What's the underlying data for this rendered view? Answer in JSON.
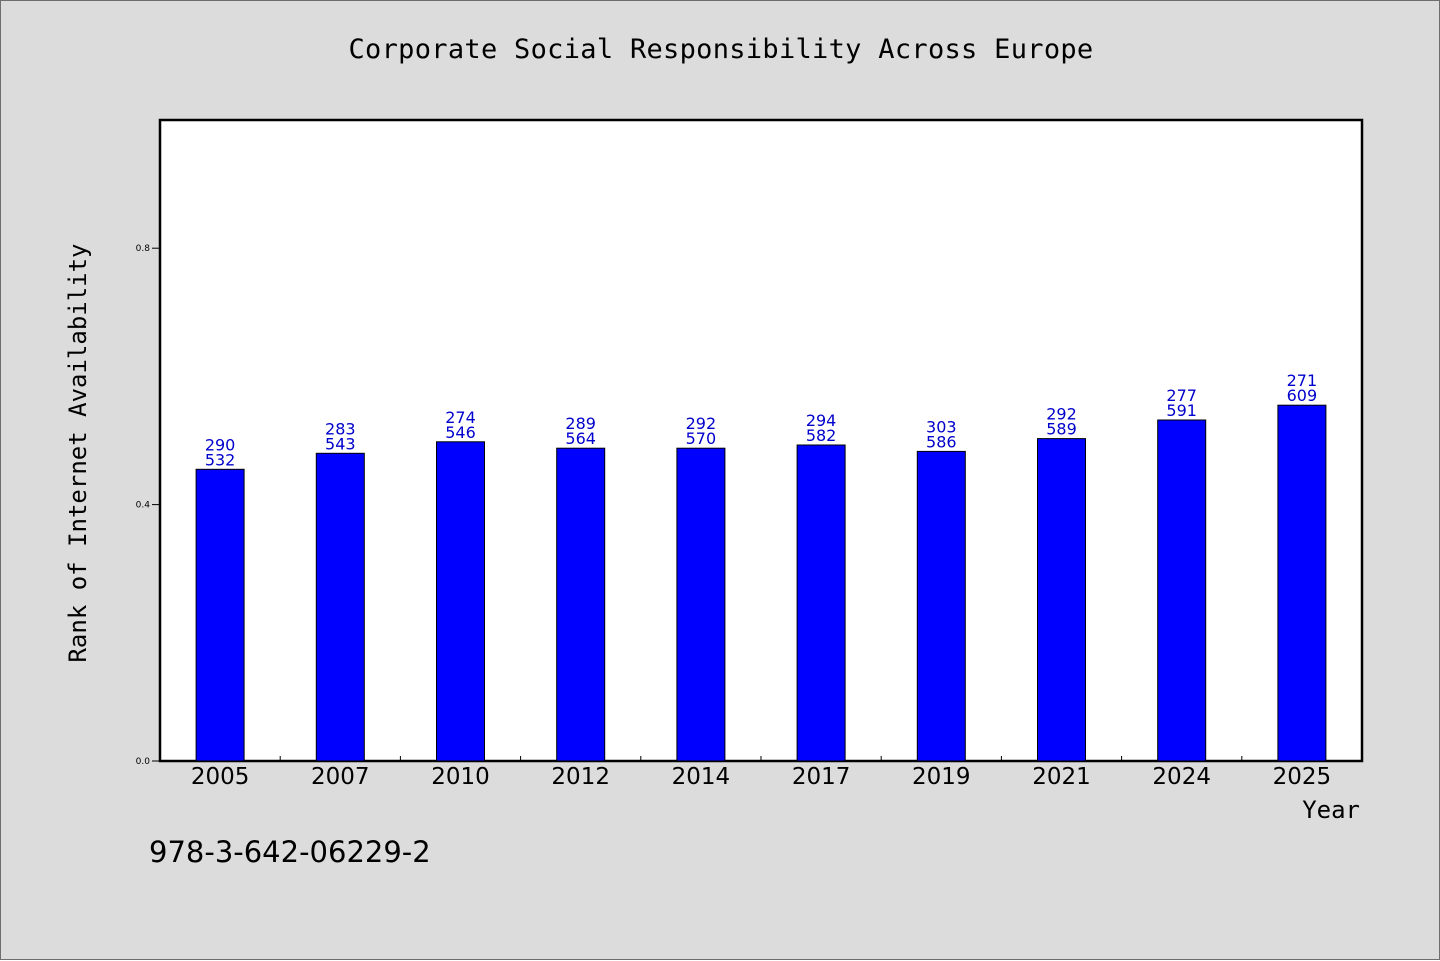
{
  "chart_data": {
    "type": "bar",
    "title": "Corporate Social Responsibility Across Europe",
    "xlabel": "Year",
    "ylabel": "Rank of Internet Availability",
    "categories": [
      "2005",
      "2007",
      "2010",
      "2012",
      "2014",
      "2017",
      "2019",
      "2021",
      "2024",
      "2025"
    ],
    "values": [
      0.455,
      0.48,
      0.498,
      0.488,
      0.488,
      0.493,
      0.483,
      0.503,
      0.532,
      0.555
    ],
    "bar_labels_top": [
      "290",
      "283",
      "274",
      "289",
      "292",
      "294",
      "303",
      "292",
      "277",
      "271"
    ],
    "bar_labels_bottom": [
      "532",
      "543",
      "546",
      "564",
      "570",
      "582",
      "586",
      "589",
      "591",
      "609"
    ],
    "ylim": [
      0,
      1.0
    ],
    "yticks": [
      0.0,
      0.4,
      0.8
    ],
    "ytick_labels": [
      "0.0",
      "0.4",
      "0.8"
    ],
    "grid": false,
    "legend": "none",
    "bar_color": "#0000ff",
    "label_color": "#0000cc"
  },
  "annotation": "978-3-642-06229-2",
  "colors": {
    "background": "#dcdcdc",
    "plot_background": "#ffffff",
    "axis": "#000000"
  }
}
